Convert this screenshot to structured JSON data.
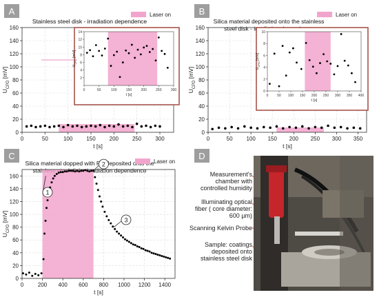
{
  "panels": [
    {
      "letter": "A",
      "title": "Stainless steel disk - irradiation dependence",
      "legend": "Laser on"
    },
    {
      "letter": "B",
      "title": "Silica material deposited onto the stainless steel disk - irradiation dependence",
      "legend": "Laser on"
    },
    {
      "letter": "C",
      "title": "Silica material dopped with PS deposited onto the stainless steel disk - irradiation dependence",
      "legend": "Laser on"
    },
    {
      "letter": "D"
    }
  ],
  "colors": {
    "laser": "#f2a5cc",
    "inset_frame": "#a0483f",
    "points": "#000000"
  },
  "chart_data": [
    {
      "type": "scatter",
      "panel": "A",
      "title": "Stainless steel disk - irradiation dependence",
      "xlabel": "t [s]",
      "ylabel": "U_CPD [mV]",
      "xlim": [
        0,
        330
      ],
      "ylim": [
        0,
        160
      ],
      "xticks": [
        0,
        50,
        100,
        150,
        200,
        250,
        300
      ],
      "yticks": [
        0,
        20,
        40,
        60,
        80,
        100,
        120,
        140,
        160
      ],
      "laser_on": [
        80,
        245
      ],
      "legend": "Laser on",
      "x": [
        10,
        20,
        30,
        40,
        50,
        60,
        70,
        80,
        90,
        100,
        110,
        120,
        130,
        140,
        150,
        160,
        170,
        180,
        190,
        200,
        210,
        220,
        230,
        240,
        250,
        260,
        270,
        280,
        290,
        300
      ],
      "y": [
        9,
        10,
        8,
        9,
        10,
        8,
        9,
        10,
        8,
        11,
        9,
        10,
        8,
        9,
        10,
        9,
        11,
        8,
        10,
        9,
        12,
        9,
        10,
        8,
        13,
        9,
        10,
        8,
        10,
        9
      ],
      "inset": {
        "xlabel": "t [s]",
        "ylabel": "U_CPD [mV]",
        "xlim": [
          0,
          300
        ],
        "ylim": [
          0,
          14
        ],
        "xticks": [
          0,
          50,
          100,
          150,
          200,
          250,
          300
        ],
        "yticks": [
          2,
          4,
          6,
          8,
          10,
          12,
          14
        ],
        "laser_on": [
          80,
          245
        ],
        "x": [
          10,
          20,
          30,
          40,
          50,
          60,
          70,
          80,
          90,
          100,
          110,
          120,
          130,
          140,
          150,
          160,
          170,
          180,
          190,
          200,
          210,
          220,
          230,
          240,
          250,
          260,
          270,
          280
        ],
        "y": [
          8.5,
          9.2,
          7.6,
          10.5,
          9.0,
          7.8,
          9.6,
          12.2,
          5.1,
          7.9,
          8.8,
          2.2,
          6.0,
          9.1,
          8.4,
          10.6,
          7.2,
          9.3,
          8.1,
          9.9,
          10.3,
          8.7,
          9.5,
          6.5,
          12.5,
          9.0,
          8.2,
          4.6
        ]
      }
    },
    {
      "type": "scatter",
      "panel": "B",
      "title": "Silica material deposited onto the stainless steel disk - irradiation dependence",
      "xlabel": "t [s]",
      "ylabel": "U_CPD [mV]",
      "xlim": [
        0,
        370
      ],
      "ylim": [
        0,
        160
      ],
      "xticks": [
        0,
        50,
        100,
        150,
        200,
        250,
        300,
        350
      ],
      "yticks": [
        0,
        20,
        40,
        60,
        80,
        100,
        120,
        140,
        160
      ],
      "laser_on": [
        160,
        270
      ],
      "legend": "Laser on",
      "x": [
        10,
        25,
        40,
        55,
        70,
        85,
        100,
        115,
        130,
        145,
        160,
        175,
        190,
        205,
        220,
        235,
        250,
        265,
        280,
        295,
        310,
        325,
        340,
        355
      ],
      "y": [
        5,
        7,
        6,
        8,
        6,
        9,
        7,
        6,
        8,
        7,
        9,
        6,
        8,
        7,
        9,
        6,
        8,
        7,
        10,
        7,
        8,
        6,
        7,
        6
      ],
      "inset": {
        "xlabel": "t [s]",
        "ylabel": "U_CPD [mV]",
        "xlim": [
          0,
          400
        ],
        "ylim": [
          0,
          10
        ],
        "xticks": [
          0,
          50,
          100,
          150,
          200,
          250,
          300,
          350,
          400
        ],
        "yticks": [
          0,
          2,
          4,
          6,
          8,
          10
        ],
        "laser_on": [
          160,
          270
        ],
        "x": [
          10,
          30,
          50,
          65,
          80,
          95,
          110,
          125,
          145,
          165,
          180,
          195,
          210,
          225,
          240,
          255,
          270,
          285,
          300,
          315,
          330,
          345,
          360,
          375
        ],
        "y": [
          1.2,
          6.3,
          0.8,
          7.6,
          2.6,
          6.5,
          7.2,
          4.8,
          3.7,
          8.1,
          5.2,
          4.1,
          3.0,
          4.7,
          6.2,
          5.0,
          4.6,
          2.8,
          4.2,
          9.6,
          5.1,
          4.3,
          3.0,
          1.5
        ]
      }
    },
    {
      "type": "scatter",
      "panel": "C",
      "title": "Silica material dopped with PS deposited onto the stainless steel disk - irradiation dependence",
      "xlabel": "t [s]",
      "ylabel": "U_CPD [mV]",
      "xlim": [
        0,
        1500
      ],
      "ylim": [
        0,
        170
      ],
      "xticks": [
        0,
        200,
        400,
        600,
        800,
        1000,
        1200,
        1400
      ],
      "yticks": [
        0,
        20,
        40,
        60,
        80,
        100,
        120,
        140,
        160
      ],
      "laser_on": [
        200,
        700
      ],
      "legend": "Laser on",
      "annotations": [
        "1",
        "2",
        "3"
      ],
      "x": [
        10,
        40,
        70,
        100,
        130,
        160,
        190,
        210,
        220,
        230,
        240,
        250,
        260,
        275,
        290,
        305,
        320,
        340,
        360,
        380,
        400,
        420,
        440,
        460,
        480,
        500,
        520,
        540,
        560,
        580,
        600,
        620,
        640,
        660,
        680,
        700,
        715,
        730,
        745,
        760,
        775,
        790,
        810,
        830,
        850,
        870,
        890,
        910,
        930,
        950,
        970,
        990,
        1010,
        1030,
        1050,
        1070,
        1090,
        1110,
        1130,
        1150,
        1170,
        1190,
        1210,
        1230,
        1250,
        1270,
        1290,
        1310,
        1330,
        1350,
        1370,
        1390,
        1410,
        1430,
        1450
      ],
      "y": [
        8,
        6,
        9,
        4,
        7,
        5,
        8,
        30,
        70,
        90,
        110,
        122,
        132,
        142,
        150,
        156,
        160,
        163,
        165,
        166,
        166,
        167,
        167,
        168,
        168,
        168,
        167,
        168,
        167,
        168,
        168,
        169,
        168,
        167,
        168,
        168,
        158,
        148,
        138,
        128,
        120,
        112,
        104,
        97,
        91,
        86,
        81,
        77,
        73,
        70,
        67,
        64,
        61,
        59,
        57,
        55,
        53,
        52,
        50,
        49,
        47,
        46,
        44,
        43,
        42,
        40,
        39,
        38,
        37,
        36,
        35,
        34,
        33,
        32,
        31
      ]
    }
  ],
  "photo_labels": [
    "Measurement's chamber with controlled humidity",
    "Illuminating optical fiber ( core diameter: 600 µm)",
    "Scanning Kelvin Probe",
    "Sample: coatings deposited onto stainless steel disk"
  ]
}
